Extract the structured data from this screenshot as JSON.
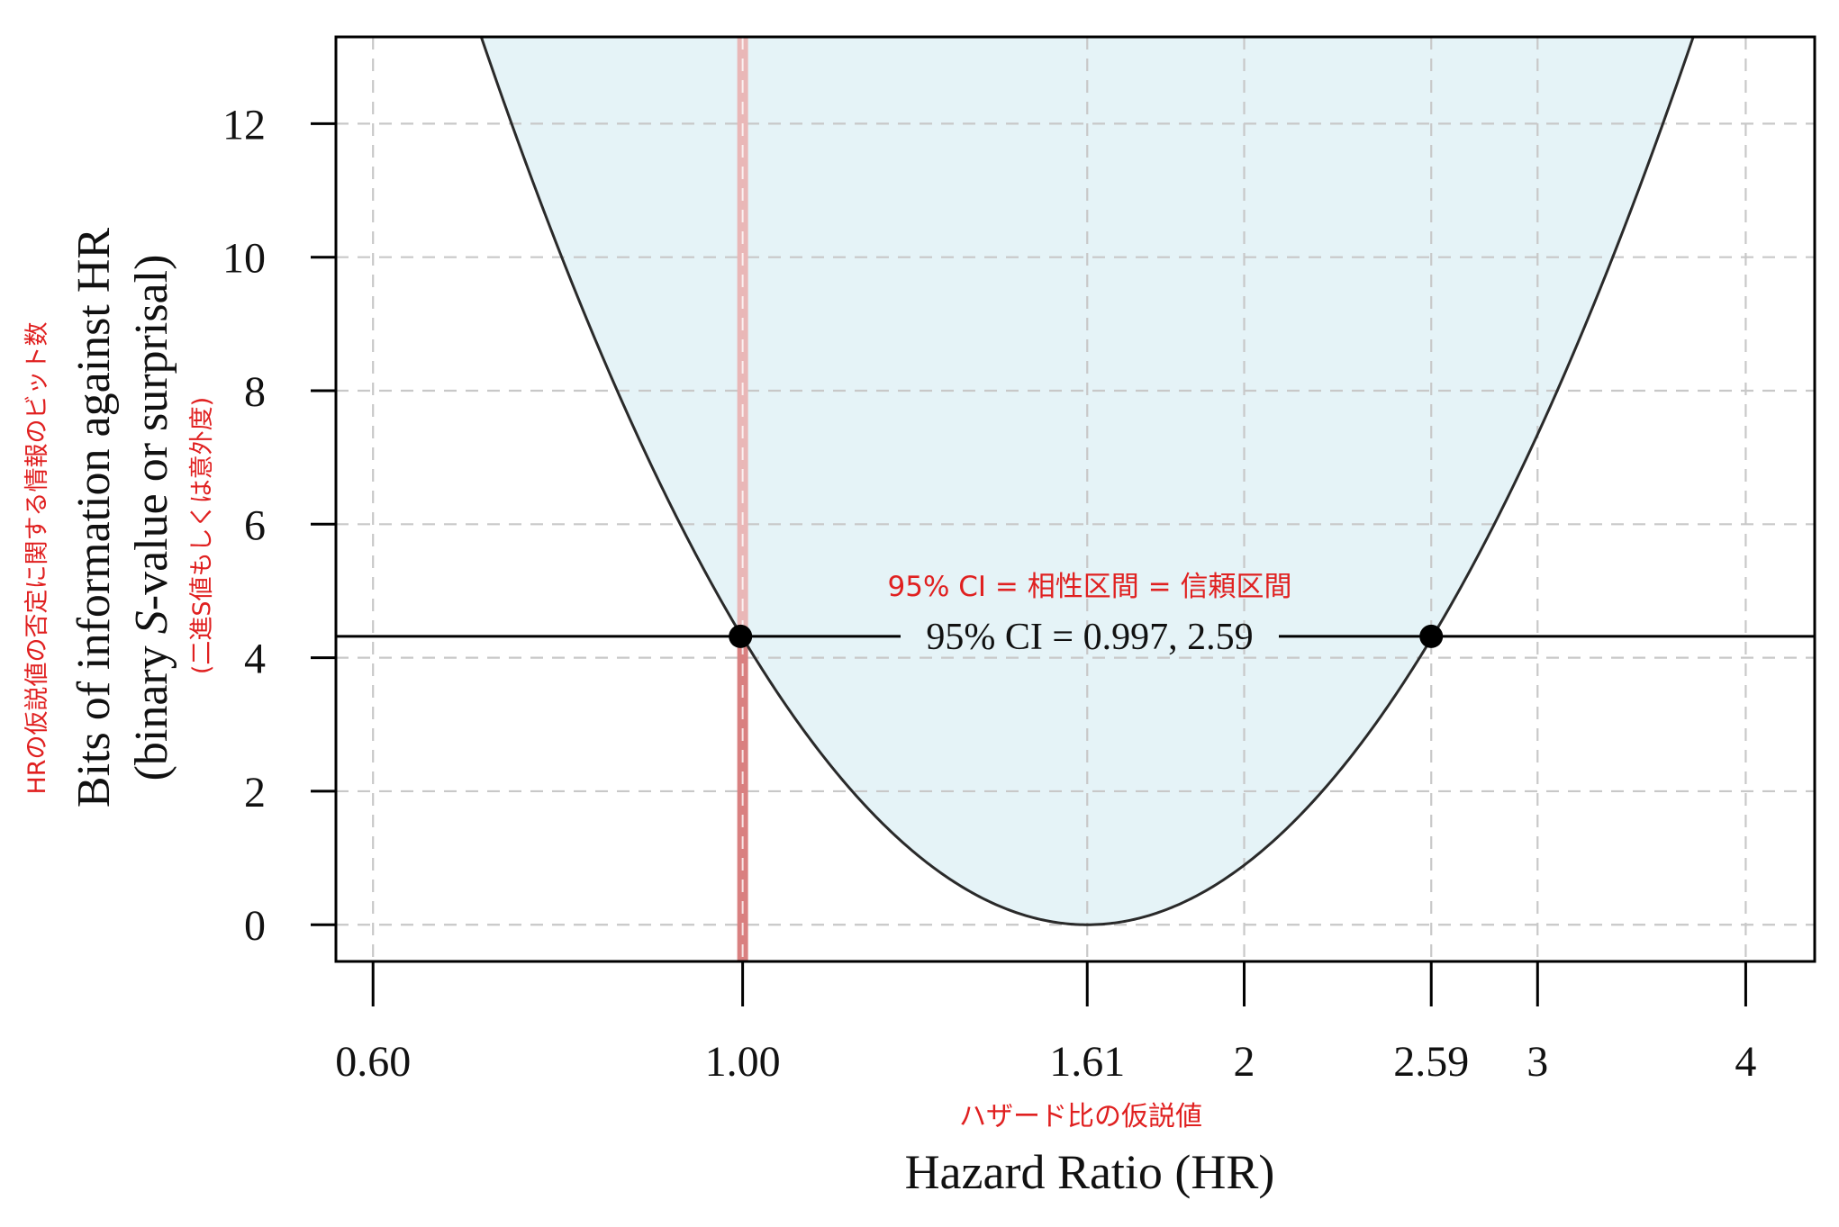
{
  "chart_data": {
    "type": "line",
    "x_scale": "log",
    "xlabel": "Hazard Ratio (HR)",
    "xlabel_ja": "ハザード比の仮説値",
    "ylabel_line1": "Bits of information against HR",
    "ylabel_line2_prefix": "(binary ",
    "ylabel_line2_italic": "S",
    "ylabel_line2_suffix": "-value or surprisal)",
    "ylabel_ja_1": "HRの仮説値の否定に関する情報のビット数",
    "ylabel_ja_2": "(二進S値もしくは意外度)",
    "xlim": [
      0.57,
      4.4
    ],
    "ylim": [
      -0.55,
      13.3
    ],
    "x_ticks": [
      {
        "value": 0.6,
        "label": "0.60"
      },
      {
        "value": 1.0,
        "label": "1.00"
      },
      {
        "value": 1.61,
        "label": "1.61"
      },
      {
        "value": 2,
        "label": "2"
      },
      {
        "value": 2.59,
        "label": "2.59"
      },
      {
        "value": 3,
        "label": "3"
      },
      {
        "value": 4,
        "label": "4"
      }
    ],
    "y_ticks": [
      {
        "value": 0,
        "label": "0"
      },
      {
        "value": 2,
        "label": "2"
      },
      {
        "value": 4,
        "label": "4"
      },
      {
        "value": 6,
        "label": "6"
      },
      {
        "value": 8,
        "label": "8"
      },
      {
        "value": 10,
        "label": "10"
      },
      {
        "value": 12,
        "label": "12"
      }
    ],
    "grid": true,
    "curve": {
      "point_estimate_hr": 1.61,
      "ci_lower": 0.997,
      "ci_upper": 2.59,
      "ci_level_bits": 4.32,
      "fill_color": "#e5f3f7"
    },
    "reference_line_x": 1.0,
    "reference_line_color": "#d98080",
    "ci_points": [
      {
        "x": 0.997,
        "y": 4.32
      },
      {
        "x": 2.59,
        "y": 4.32
      }
    ],
    "ci_label": "95% CI = 0.997, 2.59",
    "ci_label_ja": "95% CI = 相性区間 = 信頼区間",
    "annotation_color": "#e02020"
  }
}
